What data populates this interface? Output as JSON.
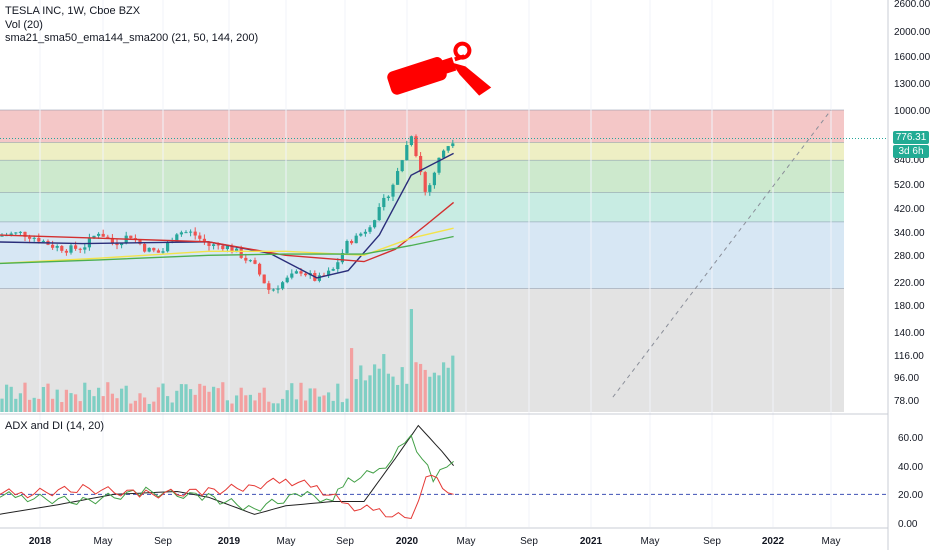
{
  "legend": {
    "symbol": "TESLA INC, 1W, Cboe BZX",
    "volume": "Vol (20)",
    "mas": "sma21_sma50_ema144_sma200 (21, 50, 144, 200)",
    "adx": "ADX and DI (14, 20)"
  },
  "badges": {
    "price": "776.31",
    "countdown": "3d 6h"
  },
  "colors": {
    "up": "#26a69a",
    "down": "#ef5350",
    "sma21": "#2a2e7a",
    "sma50": "#d32f2f",
    "ema144": "#f3e34a",
    "sma200": "#4caf50",
    "adx_line": "#222222",
    "di_plus": "#43a047",
    "di_minus": "#e53935",
    "threshold": "#3f51b5",
    "price_line": "#26a69a",
    "fire_extinguisher": "#ff0000"
  },
  "icons": [
    "fire-extinguisher-icon"
  ],
  "chart_data": [
    {
      "type": "candlestick",
      "title": "TESLA INC, 1W, Cboe BZX",
      "y_scale": "log",
      "y_ticks": [
        "2600.00",
        "2000.00",
        "1600.00",
        "1300.00",
        "1000.00",
        "840.00",
        "520.00",
        "420.00",
        "340.00",
        "280.00",
        "220.00",
        "180.00",
        "140.00",
        "116.00",
        "96.00",
        "78.00"
      ],
      "x_ticks": [
        "2018",
        "May",
        "Sep",
        "2019",
        "May",
        "Sep",
        "2020",
        "May",
        "Sep",
        "2021",
        "May",
        "Sep",
        "2022",
        "May"
      ],
      "last_price": 776.31,
      "fib_levels": [
        {
          "value": 1000,
          "fill": "#f4c7c7"
        },
        {
          "value": 750,
          "fill": "#eeefc4"
        },
        {
          "value": 640,
          "fill": "#cde9cd"
        },
        {
          "value": 480,
          "fill": "#c8ece3"
        },
        {
          "value": 370,
          "fill": "#d7e7f4"
        },
        {
          "value": 205,
          "fill": "#e3e3e3"
        }
      ],
      "price_path": [
        [
          "2017-11-01",
          320
        ],
        [
          "2017-12-01",
          330
        ],
        [
          "2018-01-01",
          335
        ],
        [
          "2018-02-01",
          320
        ],
        [
          "2018-03-01",
          300
        ],
        [
          "2018-04-01",
          290
        ],
        [
          "2018-05-01",
          295
        ],
        [
          "2018-06-01",
          340
        ],
        [
          "2018-07-01",
          305
        ],
        [
          "2018-08-01",
          330
        ],
        [
          "2018-09-01",
          290
        ],
        [
          "2018-10-01",
          280
        ],
        [
          "2018-11-01",
          340
        ],
        [
          "2018-12-01",
          335
        ],
        [
          "2019-01-01",
          300
        ],
        [
          "2019-02-01",
          300
        ],
        [
          "2019-03-01",
          280
        ],
        [
          "2019-04-01",
          250
        ],
        [
          "2019-05-01",
          200
        ],
        [
          "2019-06-01",
          220
        ],
        [
          "2019-07-01",
          240
        ],
        [
          "2019-08-01",
          220
        ],
        [
          "2019-09-01",
          240
        ],
        [
          "2019-10-01",
          310
        ],
        [
          "2019-11-01",
          340
        ],
        [
          "2019-12-01",
          410
        ],
        [
          "2020-01-01",
          540
        ],
        [
          "2020-02-01",
          820
        ],
        [
          "2020-03-01",
          470
        ],
        [
          "2020-04-01",
          690
        ],
        [
          "2020-04-24",
          776
        ]
      ],
      "moving_averages": {
        "sma21": [
          [
            "2017-11-01",
            310
          ],
          [
            "2018-05-01",
            305
          ],
          [
            "2019-01-01",
            310
          ],
          [
            "2019-05-01",
            280
          ],
          [
            "2019-08-01",
            225
          ],
          [
            "2019-10-01",
            240
          ],
          [
            "2019-12-01",
            330
          ],
          [
            "2020-02-01",
            560
          ],
          [
            "2020-04-24",
            680
          ]
        ],
        "sma50": [
          [
            "2017-11-01",
            330
          ],
          [
            "2018-06-01",
            320
          ],
          [
            "2019-01-01",
            310
          ],
          [
            "2019-06-01",
            275
          ],
          [
            "2019-11-01",
            260
          ],
          [
            "2020-01-01",
            290
          ],
          [
            "2020-03-01",
            360
          ],
          [
            "2020-04-24",
            440
          ]
        ],
        "ema144": [
          [
            "2017-11-01",
            255
          ],
          [
            "2018-06-01",
            268
          ],
          [
            "2019-01-01",
            285
          ],
          [
            "2019-06-01",
            285
          ],
          [
            "2019-11-01",
            275
          ],
          [
            "2020-02-01",
            320
          ],
          [
            "2020-04-24",
            350
          ]
        ],
        "sma200": [
          [
            "2017-11-01",
            255
          ],
          [
            "2018-06-01",
            264
          ],
          [
            "2019-01-01",
            275
          ],
          [
            "2019-06-01",
            278
          ],
          [
            "2019-11-01",
            278
          ],
          [
            "2020-02-01",
            300
          ],
          [
            "2020-04-24",
            325
          ]
        ]
      },
      "volume": {
        "y_ticks": [],
        "peak_date": "2020-02-03"
      },
      "projection": {
        "from": [
          "2021-03-01",
          78
        ],
        "to": [
          "2022-05-01",
          1000
        ],
        "style": "dashed"
      }
    },
    {
      "type": "line",
      "title": "ADX and DI (14, 20)",
      "y_ticks": [
        "60.00",
        "40.00",
        "20.00",
        "0.00"
      ],
      "threshold": 20,
      "series": [
        {
          "key": "adx",
          "points": [
            [
              "2017-11-01",
              5
            ],
            [
              "2018-03-01",
              12
            ],
            [
              "2018-07-01",
              20
            ],
            [
              "2018-11-01",
              22
            ],
            [
              "2019-01-01",
              18
            ],
            [
              "2019-04-01",
              6
            ],
            [
              "2019-06-01",
              12
            ],
            [
              "2019-09-01",
              15
            ],
            [
              "2019-11-01",
              15
            ],
            [
              "2020-01-01",
              45
            ],
            [
              "2020-02-15",
              68
            ],
            [
              "2020-04-01",
              50
            ],
            [
              "2020-04-24",
              40
            ]
          ]
        },
        {
          "key": "di_plus",
          "points": [
            [
              "2017-11-01",
              20
            ],
            [
              "2018-01-01",
              18
            ],
            [
              "2018-05-01",
              15
            ],
            [
              "2018-09-01",
              22
            ],
            [
              "2019-01-01",
              18
            ],
            [
              "2019-04-01",
              10
            ],
            [
              "2019-07-01",
              20
            ],
            [
              "2019-09-01",
              16
            ],
            [
              "2019-10-01",
              30
            ],
            [
              "2019-12-01",
              36
            ],
            [
              "2020-02-01",
              60
            ],
            [
              "2020-03-15",
              30
            ],
            [
              "2020-04-24",
              43
            ]
          ]
        },
        {
          "key": "di_minus",
          "points": [
            [
              "2017-11-01",
              22
            ],
            [
              "2018-01-01",
              20
            ],
            [
              "2018-05-01",
              24
            ],
            [
              "2018-09-01",
              20
            ],
            [
              "2019-01-01",
              22
            ],
            [
              "2019-04-01",
              26
            ],
            [
              "2019-06-01",
              30
            ],
            [
              "2019-08-01",
              25
            ],
            [
              "2019-10-01",
              12
            ],
            [
              "2019-12-01",
              8
            ],
            [
              "2020-02-01",
              2
            ],
            [
              "2020-03-01",
              35
            ],
            [
              "2020-04-24",
              20
            ]
          ]
        }
      ]
    }
  ]
}
